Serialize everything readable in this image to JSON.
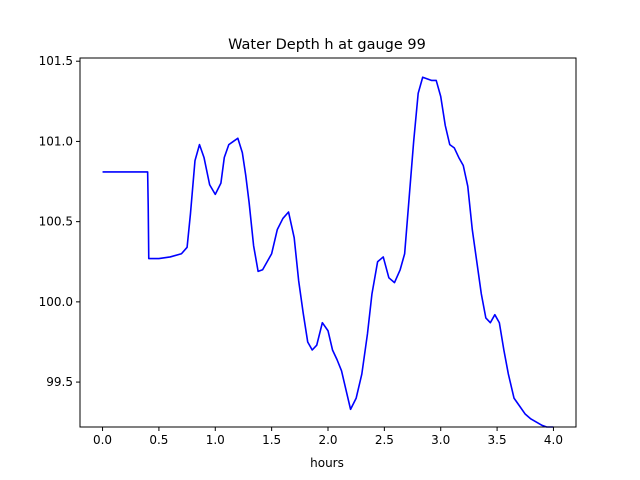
{
  "chart_data": {
    "type": "line",
    "title": "Water Depth h at gauge 99",
    "xlabel": "hours",
    "ylabel": "",
    "xlim": [
      -0.2,
      4.2
    ],
    "ylim": [
      99.22,
      101.52
    ],
    "xticks": [
      0.0,
      0.5,
      1.0,
      1.5,
      2.0,
      2.5,
      3.0,
      3.5,
      4.0
    ],
    "xtick_labels": [
      "0.0",
      "0.5",
      "1.0",
      "1.5",
      "2.0",
      "2.5",
      "3.0",
      "3.5",
      "4.0"
    ],
    "yticks": [
      99.5,
      100.0,
      100.5,
      101.0,
      101.5
    ],
    "ytick_labels": [
      "99.5",
      "100.0",
      "100.5",
      "101.0",
      "101.5"
    ],
    "grid": false,
    "series": [
      {
        "color": "#0000ff",
        "x": [
          0.0,
          0.1,
          0.2,
          0.3,
          0.4,
          0.405,
          0.41,
          0.5,
          0.6,
          0.7,
          0.75,
          0.78,
          0.82,
          0.86,
          0.9,
          0.95,
          1.0,
          1.05,
          1.08,
          1.12,
          1.16,
          1.2,
          1.24,
          1.27,
          1.3,
          1.34,
          1.38,
          1.42,
          1.46,
          1.5,
          1.55,
          1.6,
          1.65,
          1.7,
          1.74,
          1.78,
          1.82,
          1.86,
          1.9,
          1.95,
          2.0,
          2.04,
          2.08,
          2.12,
          2.15,
          2.2,
          2.25,
          2.3,
          2.35,
          2.39,
          2.44,
          2.49,
          2.54,
          2.59,
          2.64,
          2.68,
          2.72,
          2.76,
          2.8,
          2.84,
          2.88,
          2.92,
          2.96,
          3.0,
          3.04,
          3.08,
          3.12,
          3.16,
          3.2,
          3.24,
          3.28,
          3.32,
          3.36,
          3.4,
          3.44,
          3.48,
          3.52,
          3.56,
          3.6,
          3.65,
          3.7,
          3.75,
          3.8,
          3.85,
          3.9,
          3.94,
          3.97,
          4.0
        ],
        "y": [
          100.81,
          100.81,
          100.81,
          100.81,
          100.81,
          100.6,
          100.27,
          100.27,
          100.28,
          100.3,
          100.34,
          100.55,
          100.88,
          100.98,
          100.9,
          100.73,
          100.67,
          100.74,
          100.9,
          100.98,
          101.0,
          101.02,
          100.93,
          100.79,
          100.62,
          100.35,
          100.19,
          100.2,
          100.25,
          100.3,
          100.45,
          100.52,
          100.56,
          100.4,
          100.13,
          99.93,
          99.75,
          99.7,
          99.73,
          99.87,
          99.82,
          99.7,
          99.64,
          99.57,
          99.48,
          99.33,
          99.4,
          99.55,
          99.8,
          100.05,
          100.25,
          100.28,
          100.15,
          100.12,
          100.2,
          100.3,
          100.65,
          101.0,
          101.3,
          101.4,
          101.39,
          101.38,
          101.38,
          101.28,
          101.1,
          100.98,
          100.96,
          100.9,
          100.85,
          100.72,
          100.45,
          100.25,
          100.05,
          99.9,
          99.87,
          99.92,
          99.87,
          99.7,
          99.55,
          99.4,
          99.35,
          99.3,
          99.27,
          99.25,
          99.23,
          99.22,
          99.22,
          99.22
        ]
      }
    ]
  }
}
